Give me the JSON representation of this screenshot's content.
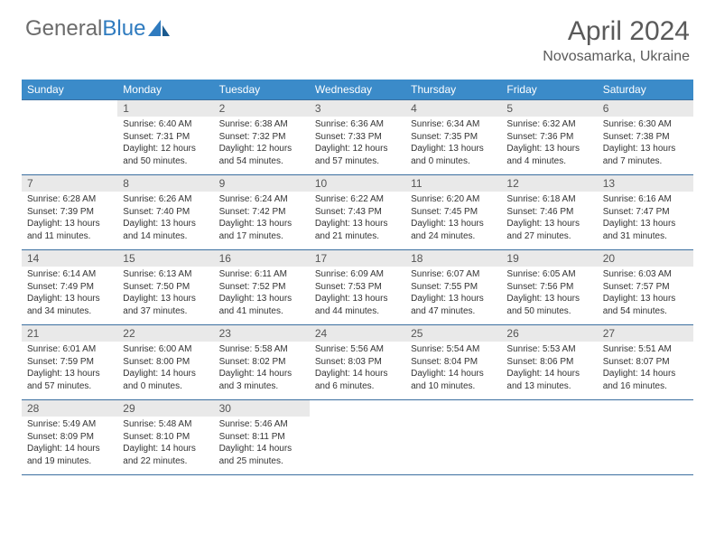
{
  "logo": {
    "text1": "General",
    "text2": "Blue"
  },
  "title": "April 2024",
  "location": "Novosamarka, Ukraine",
  "colors": {
    "header_bg": "#3b8bc9",
    "rule": "#3b6fa0",
    "daynum_bg": "#e9e9e9",
    "text": "#333333",
    "title_text": "#5a5a5a"
  },
  "day_names": [
    "Sunday",
    "Monday",
    "Tuesday",
    "Wednesday",
    "Thursday",
    "Friday",
    "Saturday"
  ],
  "weeks": [
    [
      {
        "num": "",
        "sunrise": "",
        "sunset": "",
        "daylight": ""
      },
      {
        "num": "1",
        "sunrise": "Sunrise: 6:40 AM",
        "sunset": "Sunset: 7:31 PM",
        "daylight": "Daylight: 12 hours and 50 minutes."
      },
      {
        "num": "2",
        "sunrise": "Sunrise: 6:38 AM",
        "sunset": "Sunset: 7:32 PM",
        "daylight": "Daylight: 12 hours and 54 minutes."
      },
      {
        "num": "3",
        "sunrise": "Sunrise: 6:36 AM",
        "sunset": "Sunset: 7:33 PM",
        "daylight": "Daylight: 12 hours and 57 minutes."
      },
      {
        "num": "4",
        "sunrise": "Sunrise: 6:34 AM",
        "sunset": "Sunset: 7:35 PM",
        "daylight": "Daylight: 13 hours and 0 minutes."
      },
      {
        "num": "5",
        "sunrise": "Sunrise: 6:32 AM",
        "sunset": "Sunset: 7:36 PM",
        "daylight": "Daylight: 13 hours and 4 minutes."
      },
      {
        "num": "6",
        "sunrise": "Sunrise: 6:30 AM",
        "sunset": "Sunset: 7:38 PM",
        "daylight": "Daylight: 13 hours and 7 minutes."
      }
    ],
    [
      {
        "num": "7",
        "sunrise": "Sunrise: 6:28 AM",
        "sunset": "Sunset: 7:39 PM",
        "daylight": "Daylight: 13 hours and 11 minutes."
      },
      {
        "num": "8",
        "sunrise": "Sunrise: 6:26 AM",
        "sunset": "Sunset: 7:40 PM",
        "daylight": "Daylight: 13 hours and 14 minutes."
      },
      {
        "num": "9",
        "sunrise": "Sunrise: 6:24 AM",
        "sunset": "Sunset: 7:42 PM",
        "daylight": "Daylight: 13 hours and 17 minutes."
      },
      {
        "num": "10",
        "sunrise": "Sunrise: 6:22 AM",
        "sunset": "Sunset: 7:43 PM",
        "daylight": "Daylight: 13 hours and 21 minutes."
      },
      {
        "num": "11",
        "sunrise": "Sunrise: 6:20 AM",
        "sunset": "Sunset: 7:45 PM",
        "daylight": "Daylight: 13 hours and 24 minutes."
      },
      {
        "num": "12",
        "sunrise": "Sunrise: 6:18 AM",
        "sunset": "Sunset: 7:46 PM",
        "daylight": "Daylight: 13 hours and 27 minutes."
      },
      {
        "num": "13",
        "sunrise": "Sunrise: 6:16 AM",
        "sunset": "Sunset: 7:47 PM",
        "daylight": "Daylight: 13 hours and 31 minutes."
      }
    ],
    [
      {
        "num": "14",
        "sunrise": "Sunrise: 6:14 AM",
        "sunset": "Sunset: 7:49 PM",
        "daylight": "Daylight: 13 hours and 34 minutes."
      },
      {
        "num": "15",
        "sunrise": "Sunrise: 6:13 AM",
        "sunset": "Sunset: 7:50 PM",
        "daylight": "Daylight: 13 hours and 37 minutes."
      },
      {
        "num": "16",
        "sunrise": "Sunrise: 6:11 AM",
        "sunset": "Sunset: 7:52 PM",
        "daylight": "Daylight: 13 hours and 41 minutes."
      },
      {
        "num": "17",
        "sunrise": "Sunrise: 6:09 AM",
        "sunset": "Sunset: 7:53 PM",
        "daylight": "Daylight: 13 hours and 44 minutes."
      },
      {
        "num": "18",
        "sunrise": "Sunrise: 6:07 AM",
        "sunset": "Sunset: 7:55 PM",
        "daylight": "Daylight: 13 hours and 47 minutes."
      },
      {
        "num": "19",
        "sunrise": "Sunrise: 6:05 AM",
        "sunset": "Sunset: 7:56 PM",
        "daylight": "Daylight: 13 hours and 50 minutes."
      },
      {
        "num": "20",
        "sunrise": "Sunrise: 6:03 AM",
        "sunset": "Sunset: 7:57 PM",
        "daylight": "Daylight: 13 hours and 54 minutes."
      }
    ],
    [
      {
        "num": "21",
        "sunrise": "Sunrise: 6:01 AM",
        "sunset": "Sunset: 7:59 PM",
        "daylight": "Daylight: 13 hours and 57 minutes."
      },
      {
        "num": "22",
        "sunrise": "Sunrise: 6:00 AM",
        "sunset": "Sunset: 8:00 PM",
        "daylight": "Daylight: 14 hours and 0 minutes."
      },
      {
        "num": "23",
        "sunrise": "Sunrise: 5:58 AM",
        "sunset": "Sunset: 8:02 PM",
        "daylight": "Daylight: 14 hours and 3 minutes."
      },
      {
        "num": "24",
        "sunrise": "Sunrise: 5:56 AM",
        "sunset": "Sunset: 8:03 PM",
        "daylight": "Daylight: 14 hours and 6 minutes."
      },
      {
        "num": "25",
        "sunrise": "Sunrise: 5:54 AM",
        "sunset": "Sunset: 8:04 PM",
        "daylight": "Daylight: 14 hours and 10 minutes."
      },
      {
        "num": "26",
        "sunrise": "Sunrise: 5:53 AM",
        "sunset": "Sunset: 8:06 PM",
        "daylight": "Daylight: 14 hours and 13 minutes."
      },
      {
        "num": "27",
        "sunrise": "Sunrise: 5:51 AM",
        "sunset": "Sunset: 8:07 PM",
        "daylight": "Daylight: 14 hours and 16 minutes."
      }
    ],
    [
      {
        "num": "28",
        "sunrise": "Sunrise: 5:49 AM",
        "sunset": "Sunset: 8:09 PM",
        "daylight": "Daylight: 14 hours and 19 minutes."
      },
      {
        "num": "29",
        "sunrise": "Sunrise: 5:48 AM",
        "sunset": "Sunset: 8:10 PM",
        "daylight": "Daylight: 14 hours and 22 minutes."
      },
      {
        "num": "30",
        "sunrise": "Sunrise: 5:46 AM",
        "sunset": "Sunset: 8:11 PM",
        "daylight": "Daylight: 14 hours and 25 minutes."
      },
      {
        "num": "",
        "sunrise": "",
        "sunset": "",
        "daylight": ""
      },
      {
        "num": "",
        "sunrise": "",
        "sunset": "",
        "daylight": ""
      },
      {
        "num": "",
        "sunrise": "",
        "sunset": "",
        "daylight": ""
      },
      {
        "num": "",
        "sunrise": "",
        "sunset": "",
        "daylight": ""
      }
    ]
  ]
}
